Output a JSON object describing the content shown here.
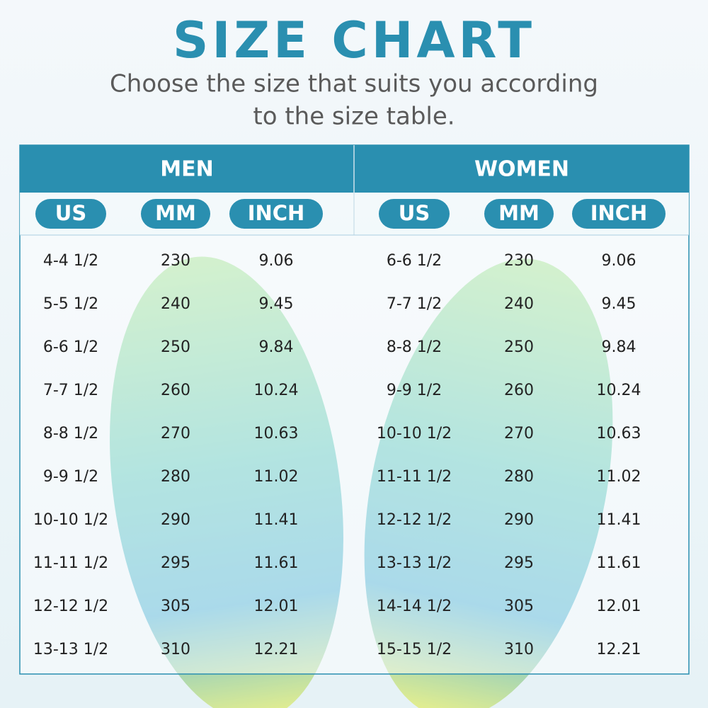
{
  "header": {
    "title": "SIZE CHART",
    "subtitle_lines": [
      "Choose the size that suits you according",
      "to the size table."
    ]
  },
  "table": {
    "groups": [
      {
        "name": "MEN",
        "columns": [
          "US",
          "MM",
          "INCH"
        ],
        "rows": [
          [
            "4-4 1/2",
            "230",
            "9.06"
          ],
          [
            "5-5 1/2",
            "240",
            "9.45"
          ],
          [
            "6-6 1/2",
            "250",
            "9.84"
          ],
          [
            "7-7 1/2",
            "260",
            "10.24"
          ],
          [
            "8-8 1/2",
            "270",
            "10.63"
          ],
          [
            "9-9 1/2",
            "280",
            "11.02"
          ],
          [
            "10-10 1/2",
            "290",
            "11.41"
          ],
          [
            "11-11 1/2",
            "295",
            "11.61"
          ],
          [
            "12-12 1/2",
            "305",
            "12.01"
          ],
          [
            "13-13 1/2",
            "310",
            "12.21"
          ]
        ]
      },
      {
        "name": "WOMEN",
        "columns": [
          "US",
          "MM",
          "INCH"
        ],
        "rows": [
          [
            "6-6 1/2",
            "230",
            "9.06"
          ],
          [
            "7-7 1/2",
            "240",
            "9.45"
          ],
          [
            "8-8 1/2",
            "250",
            "9.84"
          ],
          [
            "9-9 1/2",
            "260",
            "10.24"
          ],
          [
            "10-10 1/2",
            "270",
            "10.63"
          ],
          [
            "11-11 1/2",
            "280",
            "11.02"
          ],
          [
            "12-12 1/2",
            "290",
            "11.41"
          ],
          [
            "13-13 1/2",
            "295",
            "11.61"
          ],
          [
            "14-14 1/2",
            "305",
            "12.01"
          ],
          [
            "15-15 1/2",
            "310",
            "12.21"
          ]
        ]
      }
    ]
  }
}
